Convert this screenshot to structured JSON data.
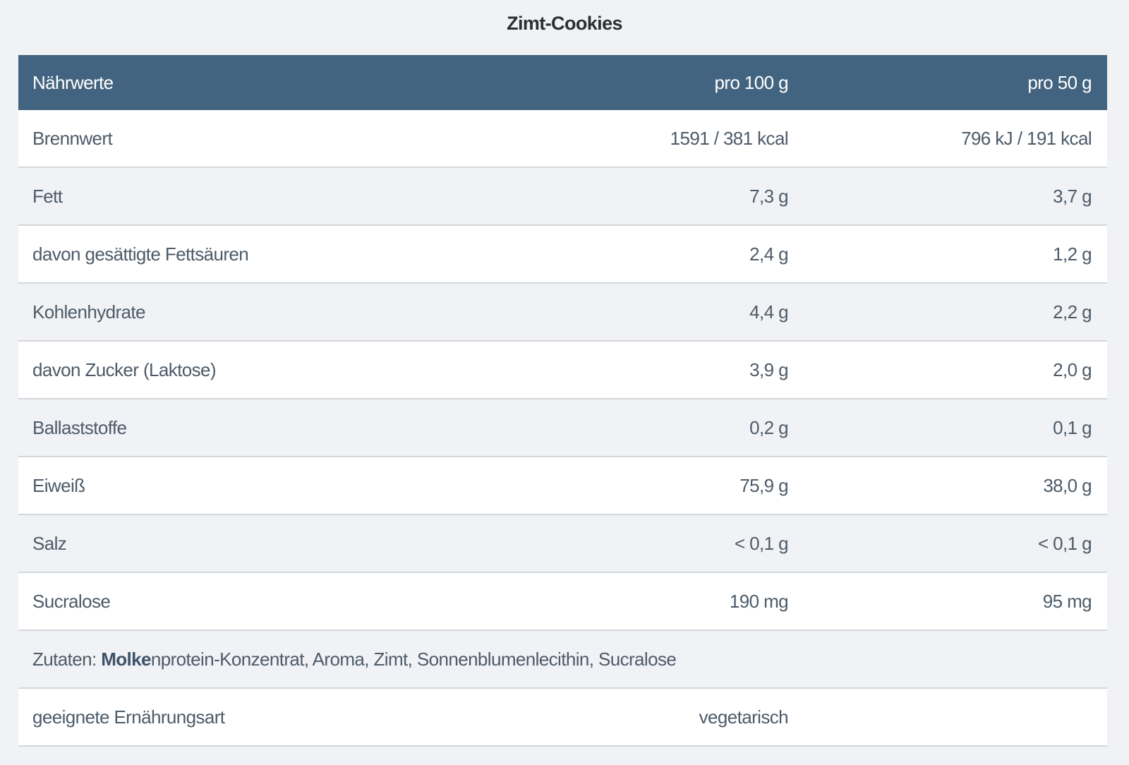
{
  "title": "Zimt-Cookies",
  "header": {
    "label": "Nährwerte",
    "col1": "pro 100 g",
    "col2": "pro 50 g"
  },
  "rows": [
    {
      "label": "Brennwert",
      "v100": "1591 / 381 kcal",
      "v50": "796 kJ / 191 kcal"
    },
    {
      "label": "Fett",
      "v100": "7,3 g",
      "v50": "3,7 g"
    },
    {
      "label": "davon gesättigte Fettsäuren",
      "v100": "2,4 g",
      "v50": "1,2 g"
    },
    {
      "label": "Kohlenhydrate",
      "v100": "4,4 g",
      "v50": "2,2 g"
    },
    {
      "label": "davon Zucker (Laktose)",
      "v100": "3,9 g",
      "v50": "2,0 g"
    },
    {
      "label": "Ballaststoffe",
      "v100": "0,2 g",
      "v50": "0,1 g"
    },
    {
      "label": "Eiweiß",
      "v100": "75,9 g",
      "v50": "38,0 g"
    },
    {
      "label": "Salz",
      "v100": "< 0,1 g",
      "v50": "< 0,1 g"
    },
    {
      "label": "Sucralose",
      "v100": "190 mg",
      "v50": "95 mg"
    }
  ],
  "ingredients": {
    "prefix": "Zutaten: ",
    "bold": "Molke",
    "rest": "nprotein-Konzentrat, Aroma, Zimt, Sonnenblumenlecithin, Sucralose"
  },
  "diet": {
    "label": "geeignete Ernährungsart",
    "value": "vegetarisch"
  },
  "colors": {
    "header_bg": "#436480",
    "background": "#f1f2f5"
  }
}
